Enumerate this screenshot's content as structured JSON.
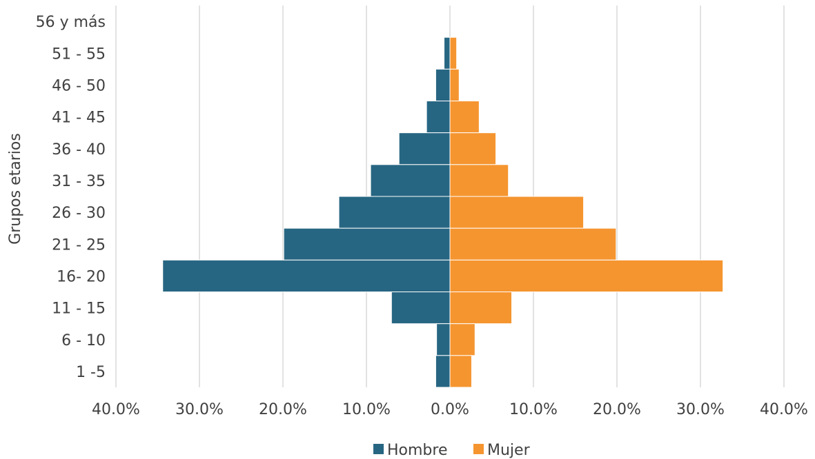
{
  "chart_data": {
    "type": "bar",
    "orientation": "horizontal",
    "layout": "population-pyramid",
    "ylabel": "Grupos etarios",
    "categories": [
      "56  y más",
      "51 - 55",
      "46 - 50",
      "41 - 45",
      "36 - 40",
      "31 - 35",
      "26 - 30",
      "21 - 25",
      "16- 20",
      "11 - 15",
      "6 - 10",
      "1 -5"
    ],
    "series": [
      {
        "name": "Hombre",
        "color": "#276682",
        "side": "left",
        "values": [
          0.0,
          0.7,
          1.7,
          2.8,
          6.1,
          9.5,
          13.3,
          19.9,
          34.4,
          7.0,
          1.6,
          1.7
        ]
      },
      {
        "name": "Mujer",
        "color": "#f59530",
        "side": "right",
        "values": [
          0.0,
          0.8,
          1.1,
          3.5,
          5.5,
          7.0,
          16.0,
          19.9,
          32.7,
          7.4,
          3.0,
          2.6
        ]
      }
    ],
    "xlim": [
      -40,
      40
    ],
    "x_ticks": [
      "40.0%",
      "30.0%",
      "20.0%",
      "10.0%",
      "0.0%",
      "10.0%",
      "20.0%",
      "30.0%",
      "40.0%"
    ],
    "grid": "vertical",
    "legend_position": "bottom"
  }
}
